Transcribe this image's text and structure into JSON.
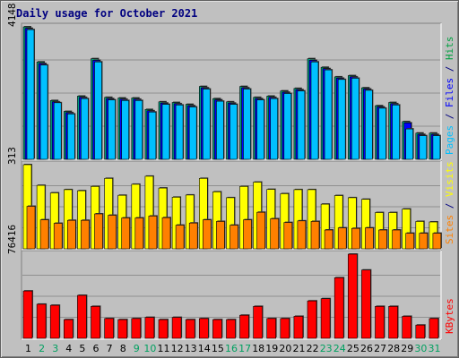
{
  "chart_data": {
    "title": "Daily usage for October 2021",
    "type": "bar",
    "days": [
      "1",
      "2",
      "3",
      "4",
      "5",
      "6",
      "7",
      "8",
      "9",
      "10",
      "11",
      "12",
      "13",
      "14",
      "15",
      "16",
      "17",
      "18",
      "19",
      "20",
      "21",
      "22",
      "23",
      "24",
      "25",
      "26",
      "27",
      "28",
      "29",
      "30",
      "31"
    ],
    "weekend_days": [
      "2",
      "3",
      "9",
      "10",
      "16",
      "17",
      "23",
      "24",
      "30",
      "31"
    ],
    "panels": [
      {
        "id": "hits-files-pages",
        "max_label": "4148",
        "ymax": 4148,
        "side_legend": [
          {
            "text": "Pages",
            "color": "#00c0ff"
          },
          {
            "text": " / ",
            "color": "#000080"
          },
          {
            "text": "Files",
            "color": "#0000ff"
          },
          {
            "text": " / ",
            "color": "#000080"
          },
          {
            "text": "Hits",
            "color": "#00a040"
          }
        ],
        "series": [
          {
            "name": "Hits",
            "color": "#00a080",
            "values": [
              4148,
              3050,
              1840,
              1500,
              1980,
              3150,
              1940,
              1920,
              1920,
              1560,
              1800,
              1780,
              1720,
              2280,
              1900,
              1800,
              2280,
              1940,
              1980,
              2140,
              2220,
              3150,
              2880,
              2580,
              2620,
              2240,
              1680,
              1780,
              1180,
              820,
              820
            ]
          },
          {
            "name": "Files",
            "color": "#0000ff",
            "values": [
              4100,
              3000,
              1800,
              1460,
              1940,
              3100,
              1900,
              1880,
              1880,
              1520,
              1760,
              1740,
              1680,
              2240,
              1860,
              1760,
              2240,
              1900,
              1940,
              2100,
              2180,
              3100,
              2840,
              2540,
              2580,
              2200,
              1640,
              1740,
              1140,
              780,
              780
            ]
          },
          {
            "name": "Pages",
            "color": "#00c0ff",
            "values": [
              4060,
              2950,
              1770,
              1420,
              1900,
              3050,
              1860,
              1840,
              1840,
              1480,
              1720,
              1700,
              1640,
              2200,
              1820,
              1720,
              2200,
              1860,
              1900,
              2060,
              2140,
              3050,
              2800,
              2500,
              2540,
              2160,
              1600,
              1700,
              950,
              740,
              740
            ]
          }
        ]
      },
      {
        "id": "visits-sites",
        "max_label": "313",
        "ymax": 313,
        "side_legend": [
          {
            "text": "Sites",
            "color": "#ff8000"
          },
          {
            "text": " / ",
            "color": "#000080"
          },
          {
            "text": "Visits",
            "color": "#ffff00"
          }
        ],
        "series": [
          {
            "name": "Visits",
            "color": "#ffff00",
            "values": [
              313,
              236,
              208,
              220,
              216,
              232,
              262,
              199,
              240,
              270,
              226,
              192,
              200,
              262,
              212,
              190,
              232,
              248,
              221,
              205,
              220,
              220,
              166,
              198,
              190,
              184,
              135,
              135,
              148,
              102,
              100
            ]
          },
          {
            "name": "Sites",
            "color": "#ff8000",
            "values": [
              158,
              108,
              95,
              106,
              106,
              130,
              125,
              115,
              115,
              122,
              116,
              88,
              96,
              108,
              102,
              88,
              108,
              136,
              112,
              98,
              104,
              102,
              70,
              78,
              76,
              78,
              70,
              70,
              58,
              58,
              58
            ]
          }
        ]
      },
      {
        "id": "kbytes",
        "max_label": "76416",
        "ymax": 76416,
        "side_legend": [
          {
            "text": "KBytes",
            "color": "#ff0000"
          }
        ],
        "series": [
          {
            "name": "KBytes",
            "color": "#ff0000",
            "values": [
              43000,
              31000,
              30000,
              17000,
              39000,
              29000,
              18000,
              17000,
              18000,
              19000,
              17000,
              19000,
              17000,
              18000,
              17000,
              17000,
              21000,
              29000,
              18000,
              18000,
              20000,
              34000,
              36000,
              55000,
              76416,
              62000,
              29000,
              29000,
              20000,
              12000,
              18000
            ]
          }
        ]
      }
    ]
  }
}
